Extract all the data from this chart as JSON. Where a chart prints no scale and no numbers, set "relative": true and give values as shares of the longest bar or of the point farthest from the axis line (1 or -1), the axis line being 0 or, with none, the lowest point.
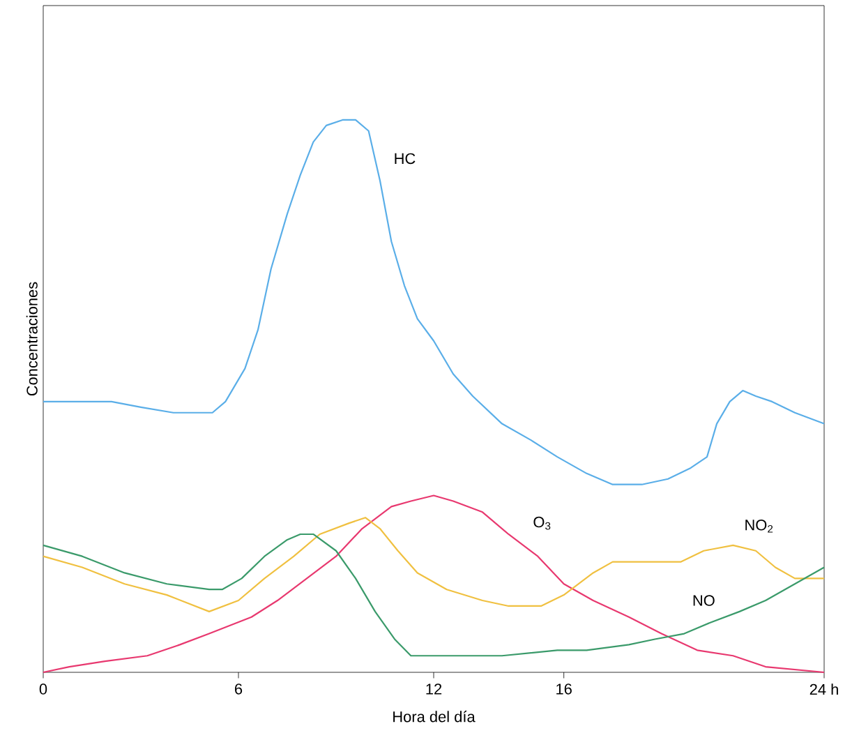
{
  "chart_data": {
    "type": "line",
    "relative": true,
    "xlabel": "Hora del día",
    "ylabel": "Concentraciones",
    "xlim": [
      0,
      24
    ],
    "xticks": [
      0,
      6,
      12,
      16,
      {
        "value": 24,
        "label": "24 h"
      }
    ],
    "tick_labels": "x",
    "grid": false,
    "legend": false,
    "marker": "none",
    "line_style": "solid",
    "series": [
      {
        "name": "HC",
        "color": "#5aaee8",
        "x": [
          0,
          1.2,
          2.1,
          3.0,
          4.0,
          4.9,
          5.2,
          5.6,
          6.2,
          6.6,
          7.0,
          7.5,
          7.9,
          8.3,
          8.7,
          9.2,
          9.6,
          10.0,
          10.35,
          10.7,
          11.1,
          11.5,
          12.0,
          12.6,
          13.2,
          14.1,
          15.0,
          15.8,
          16.7,
          17.5,
          18.4,
          19.2,
          19.9,
          20.4,
          20.7,
          21.1,
          21.5,
          21.9,
          22.4,
          23.1,
          24
        ],
        "values": [
          0.49,
          0.49,
          0.49,
          0.48,
          0.47,
          0.47,
          0.47,
          0.49,
          0.55,
          0.62,
          0.73,
          0.83,
          0.9,
          0.96,
          0.99,
          1,
          1,
          0.98,
          0.89,
          0.78,
          0.7,
          0.64,
          0.6,
          0.54,
          0.5,
          0.45,
          0.42,
          0.39,
          0.36,
          0.34,
          0.34,
          0.35,
          0.37,
          0.39,
          0.45,
          0.49,
          0.51,
          0.5,
          0.49,
          0.47,
          0.45
        ]
      },
      {
        "name": "O$_{3}$",
        "color": "#e8386f",
        "x": [
          0,
          0.8,
          1.9,
          3.2,
          4.2,
          5.1,
          6.4,
          7.2,
          8.1,
          9.0,
          9.8,
          10.7,
          11.3,
          12.0,
          12.6,
          13.5,
          14.3,
          15.2,
          16.0,
          16.9,
          18.0,
          19.0,
          20.1,
          21.2,
          22.2,
          24
        ],
        "values": [
          0,
          0.01,
          0.02,
          0.03,
          0.05,
          0.07,
          0.1,
          0.13,
          0.17,
          0.21,
          0.26,
          0.3,
          0.31,
          0.32,
          0.31,
          0.29,
          0.25,
          0.21,
          0.16,
          0.13,
          0.1,
          0.07,
          0.04,
          0.03,
          0.01,
          0
        ]
      },
      {
        "name": "NO$_{2}$",
        "color": "#f0c040",
        "x": [
          0,
          1.2,
          2.5,
          3.8,
          5.1,
          6.0,
          6.8,
          7.7,
          8.5,
          9.4,
          9.9,
          10.35,
          10.9,
          11.5,
          12.4,
          13.5,
          14.3,
          15.3,
          16.0,
          16.9,
          17.5,
          18.6,
          19.6,
          20.3,
          21.2,
          21.9,
          22.5,
          23.1,
          24
        ],
        "values": [
          0.21,
          0.19,
          0.16,
          0.14,
          0.11,
          0.13,
          0.17,
          0.21,
          0.25,
          0.27,
          0.28,
          0.26,
          0.22,
          0.18,
          0.15,
          0.13,
          0.12,
          0.12,
          0.14,
          0.18,
          0.2,
          0.2,
          0.2,
          0.22,
          0.23,
          0.22,
          0.19,
          0.17,
          0.17
        ]
      },
      {
        "name": "NO",
        "color": "#3a9a6a",
        "x": [
          0,
          1.2,
          2.5,
          3.8,
          5.1,
          5.5,
          6.1,
          6.8,
          7.5,
          7.9,
          8.3,
          9.0,
          9.6,
          10.2,
          10.8,
          11.3,
          12.0,
          12.8,
          14.1,
          15.8,
          16.7,
          18.0,
          18.8,
          19.7,
          20.5,
          21.4,
          22.2,
          23.1,
          24
        ],
        "values": [
          0.23,
          0.21,
          0.18,
          0.16,
          0.15,
          0.15,
          0.17,
          0.21,
          0.24,
          0.25,
          0.25,
          0.22,
          0.17,
          0.11,
          0.06,
          0.03,
          0.03,
          0.03,
          0.03,
          0.04,
          0.04,
          0.05,
          0.06,
          0.07,
          0.09,
          0.11,
          0.13,
          0.16,
          0.19
        ]
      }
    ]
  }
}
